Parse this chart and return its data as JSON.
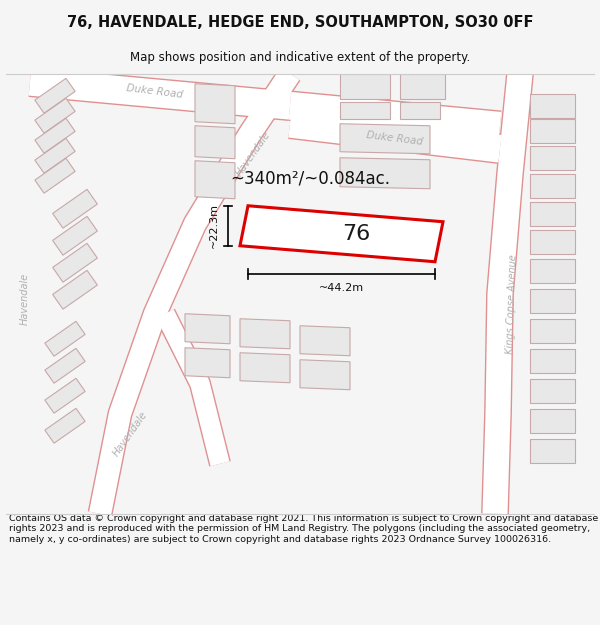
{
  "title_line1": "76, HAVENDALE, HEDGE END, SOUTHAMPTON, SO30 0FF",
  "title_line2": "Map shows position and indicative extent of the property.",
  "footer_text": "Contains OS data © Crown copyright and database right 2021. This information is subject to Crown copyright and database rights 2023 and is reproduced with the permission of HM Land Registry. The polygons (including the associated geometry, namely x, y co-ordinates) are subject to Crown copyright and database rights 2023 Ordnance Survey 100026316.",
  "area_label": "~340m²/~0.084ac.",
  "plot_number": "76",
  "dim_width": "~44.2m",
  "dim_height": "~22.3m",
  "background_color": "#f5f5f5",
  "map_bg_color": "#ffffff",
  "building_fill": "#e8e8e8",
  "building_edge": "#c8a8a8",
  "road_label_color": "#b0b0b0",
  "plot_color": "#dd0000",
  "plot_fill": "#ffffff",
  "dim_color": "#111111",
  "title_color": "#111111",
  "footer_color": "#111111",
  "road_line_color": "#f0c0c0",
  "road_outline_color": "#e09090"
}
